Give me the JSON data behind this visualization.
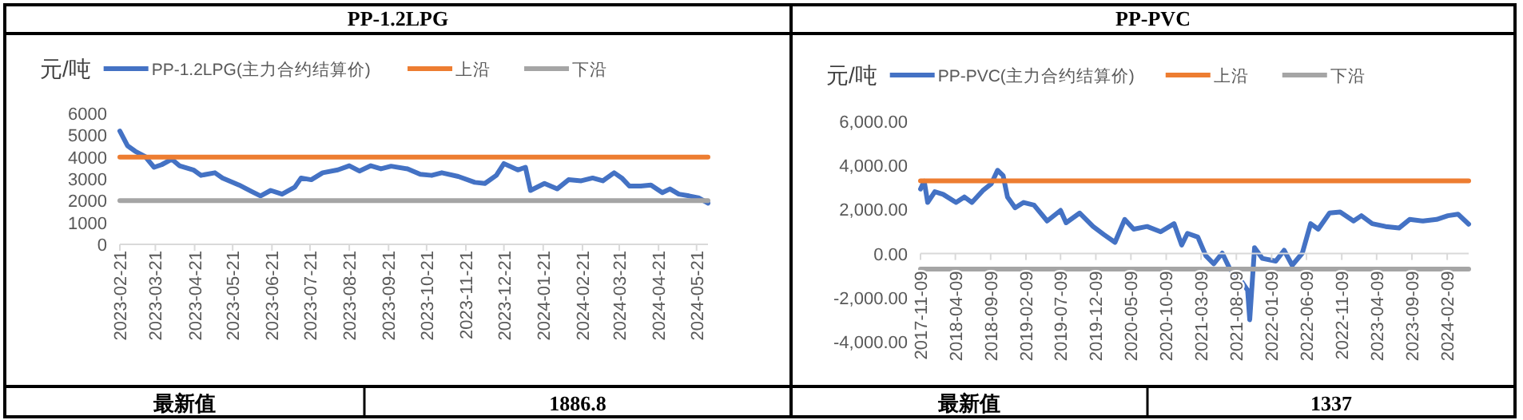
{
  "chart_data": [
    {
      "type": "line",
      "title": "PP-1.2LPG",
      "ylabel": "元/吨",
      "legend": "top",
      "xlim": [
        "2023-02-21",
        "2024-05-30"
      ],
      "xticks": [
        "2023-02-21",
        "2023-03-21",
        "2023-04-21",
        "2023-05-21",
        "2023-06-21",
        "2023-07-21",
        "2023-08-21",
        "2023-09-21",
        "2023-10-21",
        "2023-11-21",
        "2023-12-21",
        "2024-01-21",
        "2024-02-21",
        "2024-03-21",
        "2024-04-21",
        "2024-05-21"
      ],
      "ylim": [
        0,
        6000
      ],
      "yticks": [
        0,
        1000,
        2000,
        3000,
        4000,
        5000,
        6000
      ],
      "annotations": [
        "最新值",
        "1886.8"
      ],
      "series": [
        {
          "name": "PP-1.2LPG(主力合约结算价)",
          "color": "#4472c4",
          "x": [
            "2023-02-21",
            "2023-02-27",
            "2023-03-05",
            "2023-03-13",
            "2023-03-20",
            "2023-03-26",
            "2023-04-03",
            "2023-04-09",
            "2023-04-20",
            "2023-04-26",
            "2023-05-07",
            "2023-05-13",
            "2023-05-26",
            "2023-06-05",
            "2023-06-12",
            "2023-06-20",
            "2023-06-29",
            "2023-07-09",
            "2023-07-14",
            "2023-07-22",
            "2023-07-31",
            "2023-08-12",
            "2023-08-21",
            "2023-08-29",
            "2023-09-07",
            "2023-09-15",
            "2023-09-23",
            "2023-10-06",
            "2023-10-16",
            "2023-10-25",
            "2023-11-02",
            "2023-11-15",
            "2023-11-28",
            "2023-12-06",
            "2023-12-15",
            "2023-12-21",
            "2024-01-01",
            "2024-01-07",
            "2024-01-11",
            "2024-01-22",
            "2024-02-01",
            "2024-02-10",
            "2024-02-20",
            "2024-02-29",
            "2024-03-08",
            "2024-03-17",
            "2024-03-23",
            "2024-03-29",
            "2024-04-07",
            "2024-04-15",
            "2024-04-24",
            "2024-04-30",
            "2024-05-07",
            "2024-05-15",
            "2024-05-23",
            "2024-05-30"
          ],
          "values": [
            5190,
            4520,
            4270,
            4020,
            3530,
            3650,
            3900,
            3600,
            3410,
            3160,
            3280,
            3040,
            2720,
            2420,
            2220,
            2470,
            2300,
            2620,
            3040,
            2960,
            3280,
            3410,
            3600,
            3360,
            3600,
            3460,
            3580,
            3460,
            3210,
            3160,
            3280,
            3110,
            2840,
            2790,
            3160,
            3700,
            3410,
            3530,
            2470,
            2790,
            2540,
            2960,
            2910,
            3040,
            2910,
            3280,
            3040,
            2670,
            2670,
            2720,
            2370,
            2540,
            2300,
            2220,
            2120,
            1886.8
          ]
        },
        {
          "name": "上沿",
          "color": "#ed7d31",
          "x": [
            "2023-02-21",
            "2024-05-30"
          ],
          "values": [
            4000,
            4000
          ]
        },
        {
          "name": "下沿",
          "color": "#a5a5a5",
          "x": [
            "2023-02-21",
            "2024-05-30"
          ],
          "values": [
            2000,
            2000
          ]
        }
      ]
    },
    {
      "type": "line",
      "title": "PP-PVC",
      "ylabel": "元/吨",
      "legend": "top",
      "xlim": [
        "2017-11-09",
        "2024-05-12"
      ],
      "xticks": [
        "2017-11-09",
        "2018-04-09",
        "2018-09-09",
        "2019-02-09",
        "2019-07-09",
        "2019-12-09",
        "2020-05-09",
        "2020-10-09",
        "2021-03-09",
        "2021-08-09",
        "2022-01-09",
        "2022-06-09",
        "2022-11-09",
        "2023-04-09",
        "2023-09-09",
        "2024-02-09"
      ],
      "ylim": [
        -4000,
        6000
      ],
      "yticks": [
        {
          "value": -4000,
          "label": "-4,000.00"
        },
        {
          "value": -2000,
          "label": "-2,000.00"
        },
        {
          "value": 0,
          "label": "0.00"
        },
        {
          "value": 2000,
          "label": "2,000.00"
        },
        {
          "value": 4000,
          "label": "4,000.00"
        },
        {
          "value": 6000,
          "label": "6,000.00"
        }
      ],
      "annotations": [
        "最新值",
        "1337"
      ],
      "series": [
        {
          "name": "PP-PVC(主力合约结算价)",
          "color": "#4472c4",
          "x": [
            "2017-11-09",
            "2017-11-25",
            "2017-12-10",
            "2018-01-10",
            "2018-02-15",
            "2018-04-12",
            "2018-05-18",
            "2018-06-20",
            "2018-08-06",
            "2018-09-12",
            "2018-10-09",
            "2018-11-02",
            "2018-11-21",
            "2018-12-24",
            "2019-01-30",
            "2019-03-16",
            "2019-05-12",
            "2019-07-09",
            "2019-08-02",
            "2019-09-30",
            "2019-11-27",
            "2020-01-12",
            "2020-03-01",
            "2020-04-12",
            "2020-05-21",
            "2020-07-18",
            "2020-09-15",
            "2020-11-12",
            "2020-12-15",
            "2021-01-09",
            "2021-02-23",
            "2021-03-30",
            "2021-05-03",
            "2021-06-09",
            "2021-07-12",
            "2021-08-27",
            "2021-09-27",
            "2021-10-06",
            "2021-10-27",
            "2021-11-30",
            "2022-01-27",
            "2022-03-04",
            "2022-04-08",
            "2022-05-22",
            "2022-06-27",
            "2022-07-30",
            "2022-09-17",
            "2022-11-02",
            "2022-12-30",
            "2023-02-02",
            "2023-03-21",
            "2023-05-18",
            "2023-07-15",
            "2023-08-30",
            "2023-10-27",
            "2023-12-25",
            "2024-02-12",
            "2024-03-27",
            "2024-05-12"
          ],
          "values": [
            2930,
            3290,
            2320,
            2810,
            2690,
            2320,
            2570,
            2320,
            2860,
            3170,
            3780,
            3540,
            2570,
            2080,
            2320,
            2200,
            1480,
            1960,
            1400,
            1840,
            1230,
            870,
            510,
            1550,
            1110,
            1230,
            990,
            1360,
            390,
            920,
            750,
            -100,
            -460,
            20,
            -700,
            -1190,
            -1670,
            -3000,
            270,
            -220,
            -340,
            150,
            -530,
            20,
            1360,
            1110,
            1840,
            1890,
            1480,
            1720,
            1360,
            1230,
            1160,
            1550,
            1480,
            1550,
            1720,
            1790,
            1337
          ]
        },
        {
          "name": "上沿",
          "color": "#ed7d31",
          "x": [
            "2017-11-09",
            "2024-05-12"
          ],
          "values": [
            3300,
            3300
          ]
        },
        {
          "name": "下沿",
          "color": "#a5a5a5",
          "x": [
            "2017-11-09",
            "2024-05-12"
          ],
          "values": [
            -700,
            -700
          ]
        }
      ]
    }
  ]
}
